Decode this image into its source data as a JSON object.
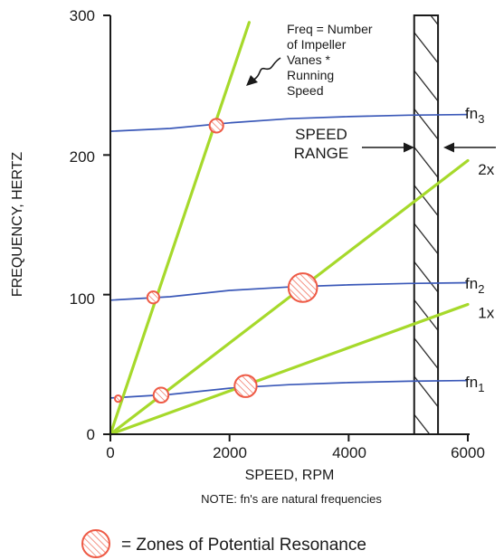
{
  "chart_data": {
    "type": "line",
    "xlabel": "SPEED,  RPM",
    "ylabel": "FREQUENCY,  HERTZ",
    "xlim": [
      0,
      6000
    ],
    "ylim": [
      0,
      300
    ],
    "x_ticks": [
      "0",
      "2000",
      "4000",
      "6000"
    ],
    "y_ticks": [
      "0",
      "100",
      "200",
      "300"
    ],
    "x_tick_values": [
      0,
      2000,
      4000,
      6000
    ],
    "y_tick_values": [
      0,
      100,
      200,
      300
    ],
    "grid": false,
    "excitation_lines": [
      {
        "name": "1x",
        "x": [
          0,
          6000
        ],
        "y": [
          0,
          93
        ],
        "label_x": 6080,
        "label_y": 87
      },
      {
        "name": "2x",
        "x": [
          0,
          6000
        ],
        "y": [
          0,
          196
        ],
        "label_x": 6080,
        "label_y": 190
      },
      {
        "name": "",
        "x": [
          0,
          2330
        ],
        "y": [
          0,
          295
        ]
      }
    ],
    "natural_frequency_curves": [
      {
        "name": "fn",
        "subscript": "1",
        "x": [
          0,
          1000,
          2000,
          3000,
          4000,
          5000,
          6000
        ],
        "y": [
          26,
          28.5,
          33,
          35.5,
          37,
          38,
          38.5
        ]
      },
      {
        "name": "fn",
        "subscript": "2",
        "x": [
          0,
          1000,
          2000,
          3000,
          4000,
          5000,
          6000
        ],
        "y": [
          96,
          98.5,
          103,
          105.5,
          107,
          108,
          108.5
        ]
      },
      {
        "name": "fn",
        "subscript": "3",
        "x": [
          0,
          1000,
          2000,
          3000,
          4000,
          5000,
          6000
        ],
        "y": [
          217,
          219,
          223,
          226,
          227.5,
          228.5,
          229
        ]
      }
    ],
    "speed_range": {
      "x_min": 5100,
      "x_max": 5500,
      "label": [
        "SPEED",
        "RANGE"
      ]
    },
    "resonance_zones": [
      {
        "x": 130,
        "y": 25.5,
        "r": 0.55
      },
      {
        "x": 850,
        "y": 28,
        "r": 1.25
      },
      {
        "x": 720,
        "y": 98,
        "r": 1.0
      },
      {
        "x": 1780,
        "y": 221,
        "r": 1.15
      },
      {
        "x": 2270,
        "y": 34.5,
        "r": 1.85
      },
      {
        "x": 3230,
        "y": 105,
        "r": 2.4
      }
    ],
    "annotation": {
      "lines": [
        "Freq = Number",
        "of Impeller",
        "Vanes *",
        "Running",
        "Speed"
      ]
    },
    "note": "NOTE:   fn's are natural frequencies",
    "legend": {
      "text": "= Zones of Potential Resonance",
      "position": "bottom"
    }
  },
  "colors": {
    "excitation": "#a6d92b",
    "natural": "#3a58b8",
    "resonance": "#ee5a45",
    "axis": "#1a1a1a"
  }
}
